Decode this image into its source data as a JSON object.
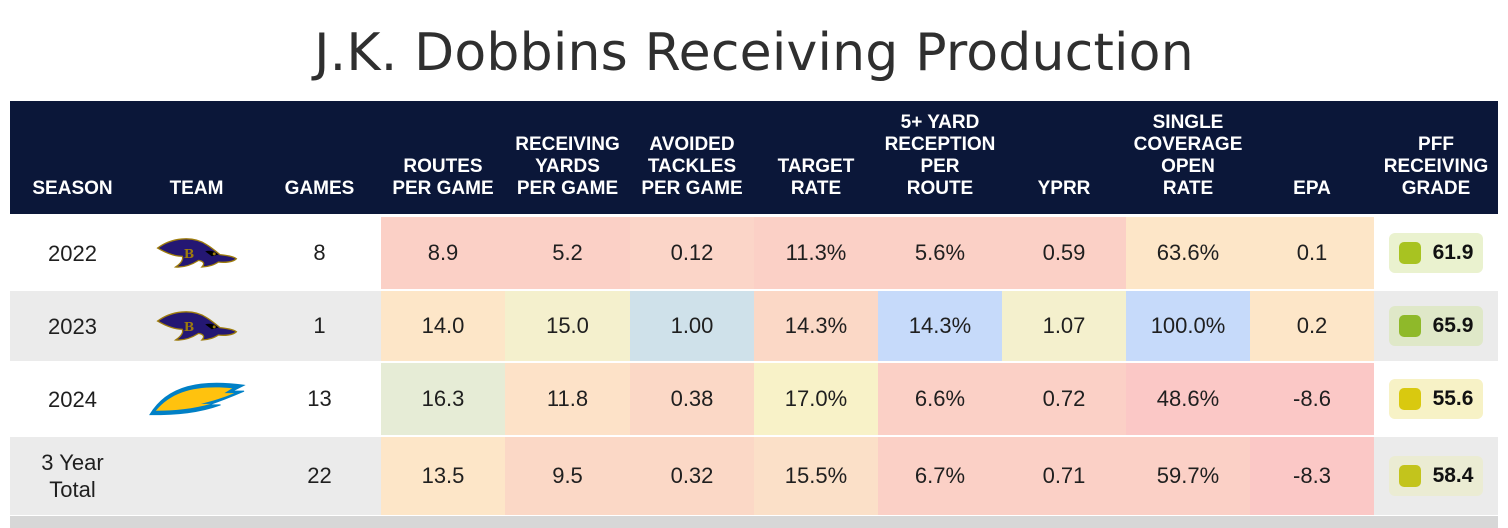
{
  "title": "J.K. Dobbins Receiving Production",
  "columns": [
    {
      "key": "season",
      "label": "SEASON"
    },
    {
      "key": "team",
      "label": "TEAM"
    },
    {
      "key": "games",
      "label": "GAMES"
    },
    {
      "key": "routes_per_game",
      "label": "ROUTES\nPER GAME"
    },
    {
      "key": "rec_yards_per_game",
      "label": "RECEIVING\nYARDS\nPER GAME"
    },
    {
      "key": "avoided_tackles_per_game",
      "label": "AVOIDED\nTACKLES\nPER GAME"
    },
    {
      "key": "target_rate",
      "label": "TARGET\nRATE"
    },
    {
      "key": "five_plus_yard_rec_per_route",
      "label": "5+ YARD\nRECEPTION\nPER\nROUTE"
    },
    {
      "key": "yprr",
      "label": "YPRR"
    },
    {
      "key": "single_cov_open_rate",
      "label": "SINGLE\nCOVERAGE\nOPEN\nRATE"
    },
    {
      "key": "epa",
      "label": "EPA"
    },
    {
      "key": "pff_grade",
      "label": "PFF\nRECEIVING\nGRADE"
    }
  ],
  "rows": [
    {
      "season": "2022",
      "team_logo": "ravens-logo-icon",
      "games": "8",
      "routes_per_game": "8.9",
      "rec_yards_per_game": "5.2",
      "avoided_tackles_per_game": "0.12",
      "target_rate": "11.3%",
      "five_plus_yard_rec_per_route": "5.6%",
      "yprr": "0.59",
      "single_cov_open_rate": "63.6%",
      "epa": "0.1",
      "pff_grade": "61.9",
      "colors": {
        "routes_per_game": "#fbd0c6",
        "rec_yards_per_game": "#fbd0c6",
        "avoided_tackles_per_game": "#fbd5c8",
        "target_rate": "#fbd0c6",
        "five_plus_yard_rec_per_route": "#fbd0c6",
        "yprr": "#fbd0c6",
        "single_cov_open_rate": "#fde6c8",
        "epa": "#fde6c8",
        "grade_pill": "#eaf2cf",
        "grade_dot": "#a8c321"
      }
    },
    {
      "season": "2023",
      "team_logo": "ravens-logo-icon",
      "games": "1",
      "routes_per_game": "14.0",
      "rec_yards_per_game": "15.0",
      "avoided_tackles_per_game": "1.00",
      "target_rate": "14.3%",
      "five_plus_yard_rec_per_route": "14.3%",
      "yprr": "1.07",
      "single_cov_open_rate": "100.0%",
      "epa": "0.2",
      "pff_grade": "65.9",
      "colors": {
        "routes_per_game": "#fde6c8",
        "rec_yards_per_game": "#f4f0cd",
        "avoided_tackles_per_game": "#cfe1ea",
        "target_rate": "#fbd8c6",
        "five_plus_yard_rec_per_route": "#c6dafa",
        "yprr": "#f4f0cd",
        "single_cov_open_rate": "#c6dafa",
        "epa": "#fde6c8",
        "grade_pill": "#dfe8c8",
        "grade_dot": "#8fb92a"
      }
    },
    {
      "season": "2024",
      "team_logo": "chargers-logo-icon",
      "games": "13",
      "routes_per_game": "16.3",
      "rec_yards_per_game": "11.8",
      "avoided_tackles_per_game": "0.38",
      "target_rate": "17.0%",
      "five_plus_yard_rec_per_route": "6.6%",
      "yprr": "0.72",
      "single_cov_open_rate": "48.6%",
      "epa": "-8.6",
      "pff_grade": "55.6",
      "colors": {
        "routes_per_game": "#e6ecd6",
        "rec_yards_per_game": "#fde2c8",
        "avoided_tackles_per_game": "#fbd8c6",
        "target_rate": "#f8f2c8",
        "five_plus_yard_rec_per_route": "#fbd0c6",
        "yprr": "#fbd0c6",
        "single_cov_open_rate": "#fbc8c6",
        "epa": "#fbc8c6",
        "grade_pill": "#f7f2c6",
        "grade_dot": "#d9c90f"
      }
    },
    {
      "season": "3 Year\nTotal",
      "team_logo": "",
      "games": "22",
      "routes_per_game": "13.5",
      "rec_yards_per_game": "9.5",
      "avoided_tackles_per_game": "0.32",
      "target_rate": "15.5%",
      "five_plus_yard_rec_per_route": "6.7%",
      "yprr": "0.71",
      "single_cov_open_rate": "59.7%",
      "epa": "-8.3",
      "pff_grade": "58.4",
      "colors": {
        "routes_per_game": "#fde6c8",
        "rec_yards_per_game": "#fbd8c6",
        "avoided_tackles_per_game": "#fbd8c6",
        "target_rate": "#fbe0c8",
        "five_plus_yard_rec_per_route": "#fbd0c6",
        "yprr": "#fbd0c6",
        "single_cov_open_rate": "#fbd0c6",
        "epa": "#fbc8c6",
        "grade_pill": "#ebecd3",
        "grade_dot": "#c3c41c"
      }
    }
  ]
}
